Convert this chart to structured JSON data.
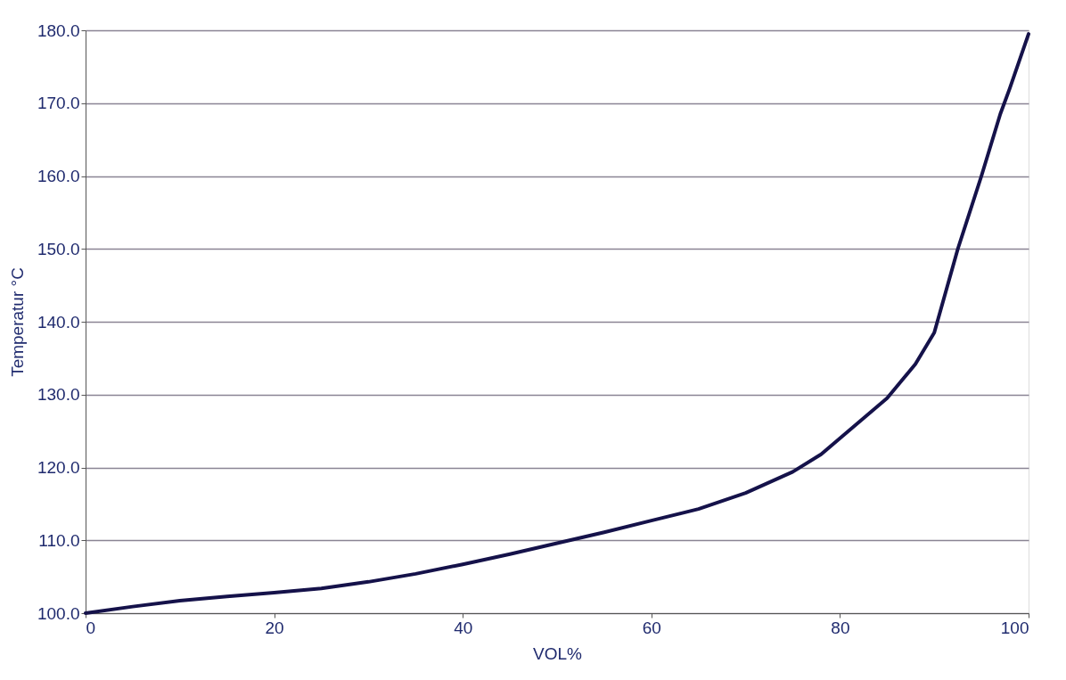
{
  "chart_data": {
    "type": "line",
    "xlabel": "VOL%",
    "ylabel": "Temperatur °C",
    "x": [
      0,
      5,
      10,
      15,
      20,
      25,
      30,
      35,
      40,
      45,
      50,
      55,
      60,
      65,
      70,
      75,
      78,
      80,
      85,
      88,
      90,
      92.5,
      95,
      97,
      98,
      100
    ],
    "series": [
      {
        "color": "#15124a",
        "values": [
          100,
          100.9,
          101.7,
          102.3,
          102.8,
          103.4,
          104.3,
          105.4,
          106.7,
          108.1,
          109.6,
          111.1,
          112.7,
          114.3,
          116.5,
          119.4,
          121.8,
          124,
          129.5,
          134.2,
          138.5,
          150,
          160,
          168.5,
          172,
          179.5
        ]
      }
    ],
    "xlim": [
      0,
      100
    ],
    "xticks": [
      0,
      20,
      40,
      60,
      80,
      100
    ],
    "ylim": [
      100,
      180
    ],
    "yticks": [
      {
        "value": 100,
        "label": "100.0"
      },
      {
        "value": 110,
        "label": "110.0"
      },
      {
        "value": 120,
        "label": "120.0"
      },
      {
        "value": 130,
        "label": "130.0"
      },
      {
        "value": 140,
        "label": "140.0"
      },
      {
        "value": 150,
        "label": "150.0"
      },
      {
        "value": 160,
        "label": "160.0"
      },
      {
        "value": 170,
        "label": "170.0"
      },
      {
        "value": 180,
        "label": "180.0"
      }
    ],
    "grid": "y",
    "legend": false,
    "marker": "none",
    "line_style": "solid"
  }
}
